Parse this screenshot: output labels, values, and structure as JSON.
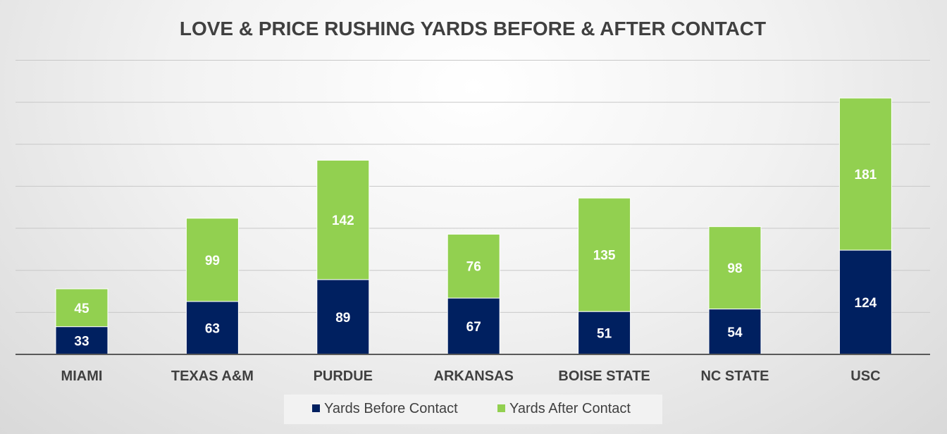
{
  "chart_data": {
    "type": "bar",
    "stacked": true,
    "title": "LOVE & PRICE RUSHING YARDS BEFORE & AFTER CONTACT",
    "categories": [
      "MIAMI",
      "TEXAS A&M",
      "PURDUE",
      "ARKANSAS",
      "BOISE STATE",
      "NC STATE",
      "USC"
    ],
    "series": [
      {
        "name": "Yards Before Contact",
        "color": "#002060",
        "values": [
          33,
          63,
          89,
          67,
          51,
          54,
          124
        ]
      },
      {
        "name": "Yards After Contact",
        "color": "#92d050",
        "values": [
          45,
          99,
          142,
          76,
          135,
          98,
          181
        ]
      }
    ],
    "xlabel": "",
    "ylabel": "",
    "ylim": [
      0,
      350
    ],
    "ytick_step": 50,
    "y_tick_labels_visible": false,
    "grid": true,
    "legend_position": "bottom"
  }
}
